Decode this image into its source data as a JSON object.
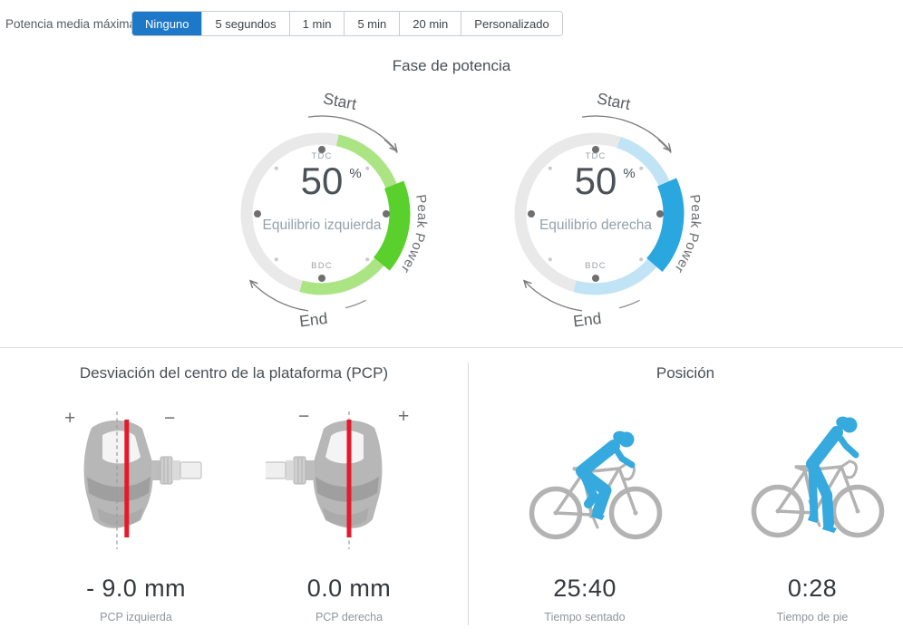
{
  "toolbar": {
    "label": "Potencia media máxima",
    "options": [
      {
        "label": "Ninguno",
        "selected": true
      },
      {
        "label": "5 segundos",
        "selected": false
      },
      {
        "label": "1 min",
        "selected": false
      },
      {
        "label": "5 min",
        "selected": false
      },
      {
        "label": "20 min",
        "selected": false
      },
      {
        "label": "Personalizado",
        "selected": false
      }
    ]
  },
  "power_phase": {
    "title": "Fase de potencia",
    "gauges": [
      {
        "id": "left",
        "value": "50",
        "unit": "%",
        "label": "Equilibrio izquierda",
        "tdc": "TDC",
        "bdc": "BDC",
        "start": "Start",
        "end": "End",
        "peak": "Peak Power",
        "arc_color_light": "#abe583",
        "arc_color_dark": "#59d02b",
        "arc_start_deg": 12,
        "arc_end_deg": 196,
        "peak_start_deg": 68,
        "peak_end_deg": 130
      },
      {
        "id": "right",
        "value": "50",
        "unit": "%",
        "label": "Equilibrio derecha",
        "tdc": "TDC",
        "bdc": "BDC",
        "start": "Start",
        "end": "End",
        "peak": "Peak Power",
        "arc_color_light": "#c0e4f5",
        "arc_color_dark": "#2ba7e0",
        "arc_start_deg": 18,
        "arc_end_deg": 196,
        "peak_start_deg": 66,
        "peak_end_deg": 131
      }
    ]
  },
  "pcp": {
    "title": "Desviación del centro de la plataforma (PCP)",
    "items": [
      {
        "value": "- 9.0 mm",
        "label": "PCP izquierda",
        "offset_mm": -9.0,
        "sign_left": "+",
        "sign_right": "−",
        "spindle_side": "right"
      },
      {
        "value": "0.0 mm",
        "label": "PCP derecha",
        "offset_mm": 0.0,
        "sign_left": "−",
        "sign_right": "+",
        "spindle_side": "left"
      }
    ]
  },
  "position": {
    "title": "Posición",
    "items": [
      {
        "value": "25:40",
        "label": "Tiempo sentado",
        "pose": "seated"
      },
      {
        "value": "0:28",
        "label": "Tiempo de pie",
        "pose": "standing"
      }
    ]
  },
  "colors": {
    "accent_blue": "#1e78c8",
    "ring_gray": "#e9e9e9",
    "dot_major": "#6f6f6f",
    "dot_minor": "#c9c9c9",
    "value_text": "#4b5156",
    "balance_text": "#93a1ac",
    "tdc_text": "#9aa0a6",
    "annotation": "#6a6e71",
    "arrow": "#7a7a7a",
    "red_line": "#e8182c",
    "pedal_gray": "#b7b7b7",
    "bike_gray": "#b3b3b3",
    "rider_blue": "#36a9de"
  }
}
